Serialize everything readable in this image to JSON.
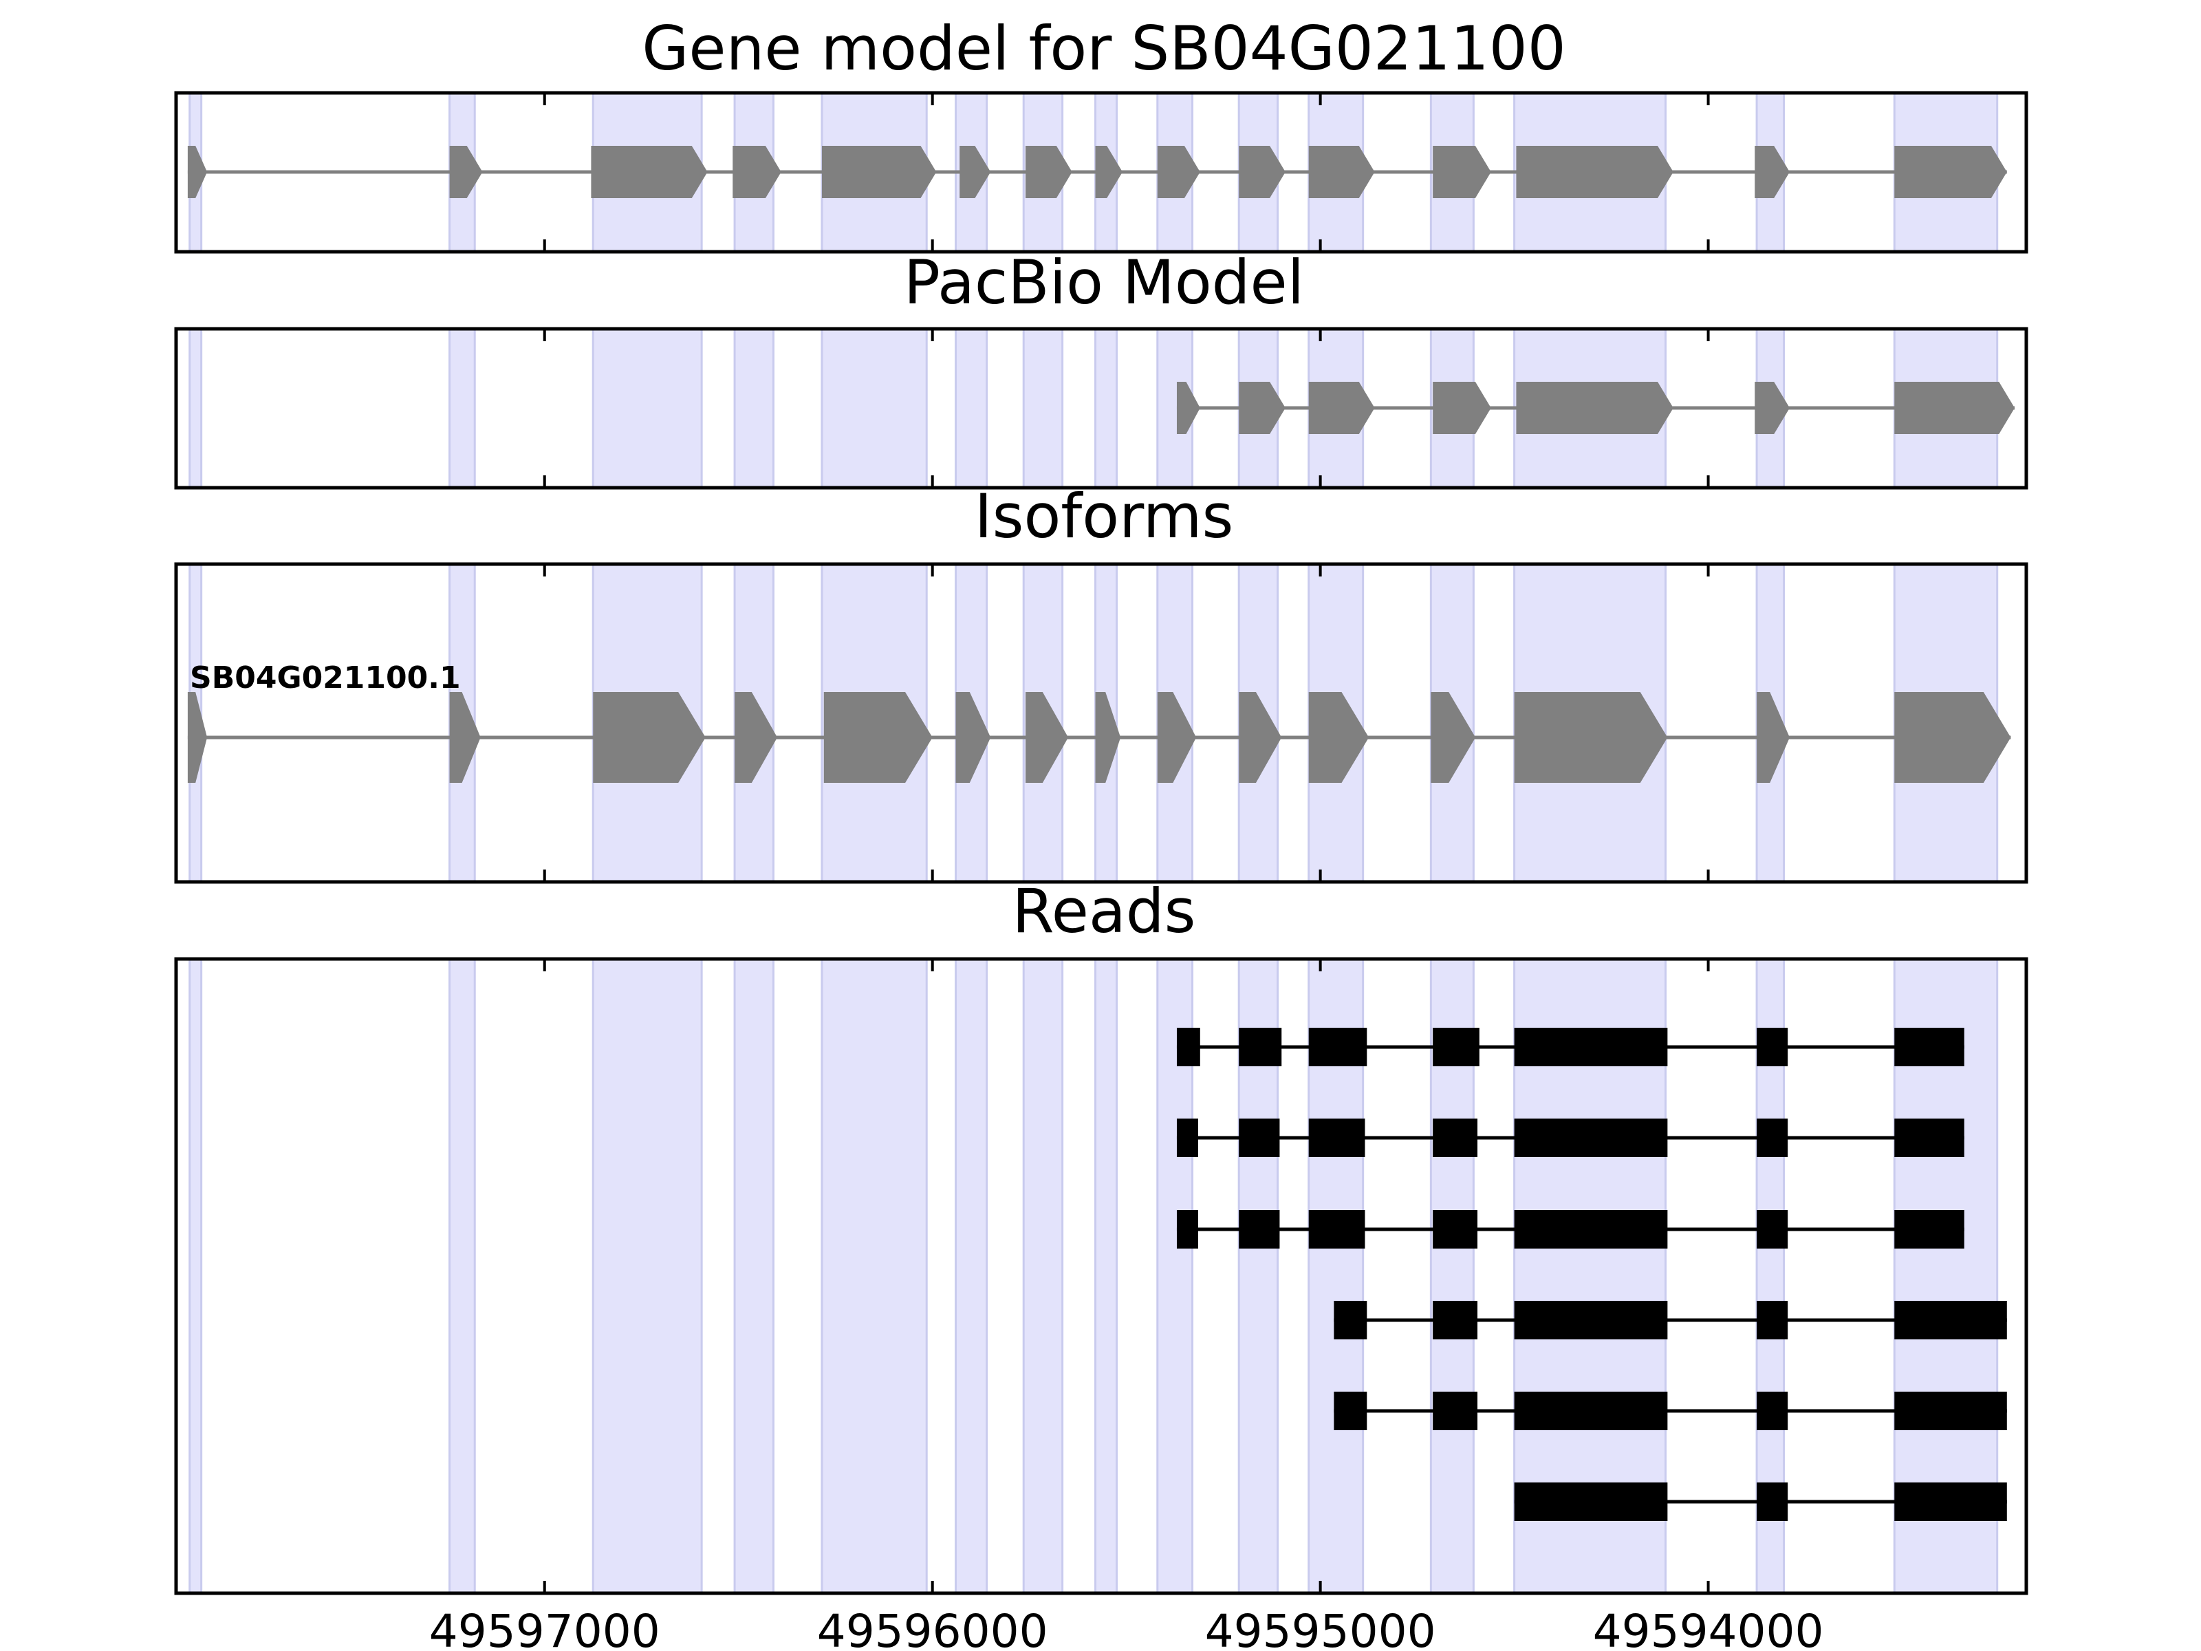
{
  "chart_data": {
    "type": "gene-structure",
    "x_axis": {
      "reversed": true,
      "range": [
        49597950,
        49593180
      ],
      "ticks": [
        49597000,
        49596000,
        49595000,
        49594000
      ],
      "tick_labels": [
        "49597000",
        "49596000",
        "49595000",
        "49594000"
      ]
    },
    "shaded_exons": [
      [
        49597915,
        49597885
      ],
      [
        49597245,
        49597180
      ],
      [
        49596875,
        49596595
      ],
      [
        49596510,
        49596410
      ],
      [
        49596285,
        49596015
      ],
      [
        49595940,
        49595860
      ],
      [
        49595765,
        49595665
      ],
      [
        49595580,
        49595525
      ],
      [
        49595420,
        49595330
      ],
      [
        49595210,
        49595110
      ],
      [
        49595030,
        49594890
      ],
      [
        49594715,
        49594605
      ],
      [
        49594500,
        49594110
      ],
      [
        49593875,
        49593805
      ],
      [
        49593520,
        49593255
      ]
    ],
    "panels": [
      {
        "id": "gene",
        "title": "Gene model for SB04G021100",
        "strand": "-",
        "features": [
          {
            "exons": [
              [
                49597920,
                49597870
              ],
              [
                49597245,
                49597160
              ],
              [
                49596880,
                49596580
              ],
              [
                49596515,
                49596390
              ],
              [
                49596285,
                49595990
              ],
              [
                49595930,
                49595850
              ],
              [
                49595760,
                49595640
              ],
              [
                49595580,
                49595510
              ],
              [
                49595420,
                49595310
              ],
              [
                49595210,
                49595090
              ],
              [
                49595030,
                49594860
              ],
              [
                49594710,
                49594560
              ],
              [
                49594495,
                49594090
              ],
              [
                49593880,
                49593790
              ],
              [
                49593520,
                49593230
              ]
            ]
          }
        ]
      },
      {
        "id": "pacbio",
        "title": "PacBio Model",
        "strand": "-",
        "features": [
          {
            "exons": [
              [
                49595370,
                49595310
              ],
              [
                49595210,
                49595090
              ],
              [
                49595030,
                49594860
              ],
              [
                49594710,
                49594560
              ],
              [
                49594495,
                49594090
              ],
              [
                49593880,
                49593790
              ],
              [
                49593520,
                49593210
              ]
            ]
          }
        ]
      },
      {
        "id": "isoforms",
        "title": "Isoforms",
        "strand": "-",
        "features": [
          {
            "name": "SB04G021100.1",
            "exons": [
              [
                49597920,
                49597870
              ],
              [
                49597245,
                49597165
              ],
              [
                49596875,
                49596585
              ],
              [
                49596510,
                49596400
              ],
              [
                49596280,
                49596000
              ],
              [
                49595940,
                49595850
              ],
              [
                49595760,
                49595650
              ],
              [
                49595580,
                49595515
              ],
              [
                49595420,
                49595320
              ],
              [
                49595210,
                49595100
              ],
              [
                49595030,
                49594875
              ],
              [
                49594715,
                49594600
              ],
              [
                49594500,
                49594105
              ],
              [
                49593875,
                49593790
              ],
              [
                49593520,
                49593220
              ]
            ]
          }
        ]
      },
      {
        "id": "reads",
        "title": "Reads",
        "strand": "-",
        "features": [
          {
            "exons": [
              [
                49595370,
                49595310
              ],
              [
                49595210,
                49595100
              ],
              [
                49595030,
                49594880
              ],
              [
                49594710,
                49594590
              ],
              [
                49594500,
                49594105
              ],
              [
                49593875,
                49593795
              ],
              [
                49593520,
                49593340
              ]
            ]
          },
          {
            "exons": [
              [
                49595370,
                49595315
              ],
              [
                49595210,
                49595105
              ],
              [
                49595030,
                49594885
              ],
              [
                49594710,
                49594595
              ],
              [
                49594500,
                49594105
              ],
              [
                49593875,
                49593795
              ],
              [
                49593520,
                49593340
              ]
            ]
          },
          {
            "exons": [
              [
                49595370,
                49595315
              ],
              [
                49595210,
                49595105
              ],
              [
                49595030,
                49594885
              ],
              [
                49594710,
                49594595
              ],
              [
                49594500,
                49594105
              ],
              [
                49593875,
                49593795
              ],
              [
                49593520,
                49593340
              ]
            ]
          },
          {
            "exons": [
              [
                49594965,
                49594880
              ],
              [
                49594710,
                49594595
              ],
              [
                49594500,
                49594105
              ],
              [
                49593875,
                49593795
              ],
              [
                49593520,
                49593230
              ]
            ]
          },
          {
            "exons": [
              [
                49594965,
                49594880
              ],
              [
                49594710,
                49594595
              ],
              [
                49594500,
                49594105
              ],
              [
                49593875,
                49593795
              ],
              [
                49593520,
                49593230
              ]
            ]
          },
          {
            "exons": [
              [
                49594500,
                49594105
              ],
              [
                49593875,
                49593795
              ],
              [
                49593520,
                49593230
              ]
            ]
          }
        ]
      }
    ]
  }
}
